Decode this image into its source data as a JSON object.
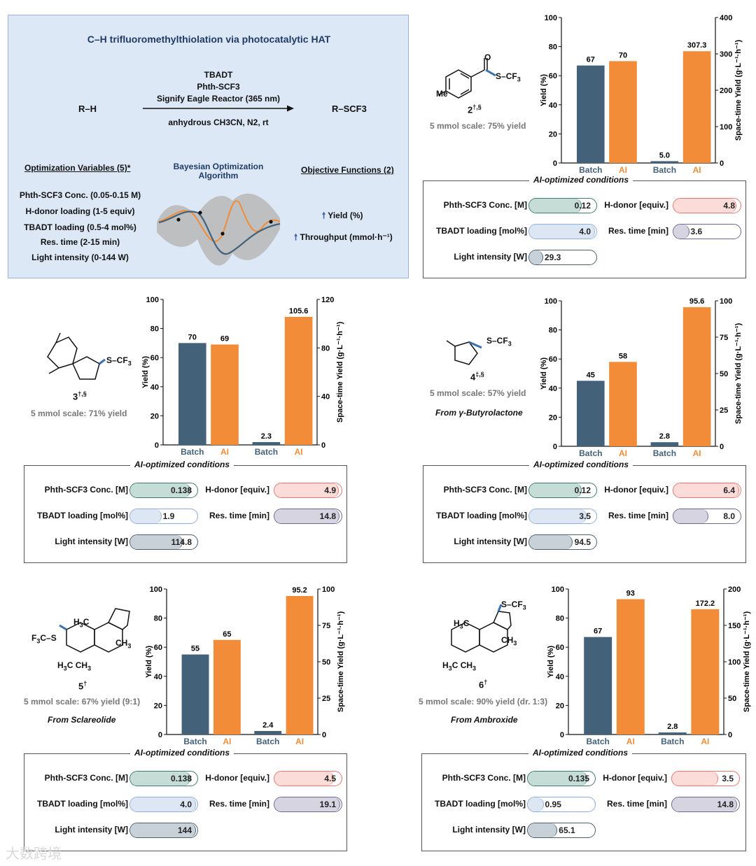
{
  "scheme": {
    "title": "C–H trifluoromethylthiolation via photocatalytic HAT",
    "reactant": "R–H",
    "product": "R–SCF3",
    "reagent1": "TBADT",
    "reagent2": "Phth-SCF3",
    "reactor": "Signify Eagle Reactor (365 nm)",
    "solvent": "anhydrous CH3CN, N2, rt",
    "variables_title": "Optimization Variables (5)*",
    "variables": [
      "Phth-SCF3 Conc. (0.05-0.15 M)",
      "H-donor loading (1-5 equiv)",
      "TBADT loading (0.5-4 mol%)",
      "Res. time (2-15 min)",
      "Light intensity (0-144 W)"
    ],
    "bo_title_1": "Bayesian Optimization",
    "bo_title_2": "Algorithm",
    "objectives_title": "Objective Functions (2)",
    "objectives": [
      "Yield (%)",
      "Throughput (mmol·h⁻¹)"
    ]
  },
  "colors": {
    "batch": "#44617a",
    "ai": "#f28c38",
    "teal": "#3d7a6b",
    "red": "#e8766e",
    "blue": "#8eaedb",
    "purple": "#6d6592",
    "slate": "#4a6070"
  },
  "labels": {
    "conc": "Phth-SCF3 Conc. [M]",
    "hdonor": "H-donor [equiv.]",
    "tbadt": "TBADT loading [mol%]",
    "restime": "Res. time [min]",
    "light": "Light intensity [W]",
    "cond_title": "AI-optimized conditions",
    "batch": "Batch",
    "ai": "AI",
    "y_left": "Yield (%)",
    "y_right": "Space-time Yield (g·L⁻¹·h⁻¹)"
  },
  "chart_data": [
    {
      "type": "bar",
      "compound": "2",
      "mark": "†,§",
      "scale": "5 mmol scale: 75% yield",
      "from": "",
      "categories": [
        "Batch",
        "AI"
      ],
      "yield": [
        67,
        70
      ],
      "sty": [
        5.0,
        307.3
      ],
      "yield_labels": [
        "67",
        "70"
      ],
      "sty_labels": [
        "5.0",
        "307.3"
      ],
      "ylim": [
        0,
        100
      ],
      "ylim_right": [
        0,
        400
      ],
      "right_ticks": [
        0,
        100,
        200,
        300,
        400
      ],
      "conditions": {
        "conc": "0.12",
        "hdonor": "4.8",
        "tbadt": "4.0",
        "restime": "3.6",
        "light": "29.3",
        "fractions": {
          "conc": 0.8,
          "hdonor": 0.96,
          "tbadt": 1.0,
          "restime": 0.24,
          "light": 0.2
        }
      }
    },
    {
      "type": "bar",
      "compound": "3",
      "mark": "†,§",
      "scale": "5 mmol scale: 71% yield",
      "from": "",
      "categories": [
        "Batch",
        "AI"
      ],
      "yield": [
        70,
        69
      ],
      "sty": [
        2.3,
        105.6
      ],
      "yield_labels": [
        "70",
        "69"
      ],
      "sty_labels": [
        "2.3",
        "105.6"
      ],
      "ylim": [
        0,
        100
      ],
      "ylim_right": [
        0,
        120
      ],
      "right_ticks": [
        0,
        40,
        80,
        120
      ],
      "conditions": {
        "conc": "0.138",
        "hdonor": "4.9",
        "tbadt": "1.9",
        "restime": "14.8",
        "light": "114.8",
        "fractions": {
          "conc": 0.92,
          "hdonor": 0.98,
          "tbadt": 0.475,
          "restime": 0.987,
          "light": 0.8
        }
      }
    },
    {
      "type": "bar",
      "compound": "4",
      "mark": "‡,§",
      "scale": "5 mmol scale: 57% yield",
      "from": "From γ-Butyrolactone",
      "categories": [
        "Batch",
        "AI"
      ],
      "yield": [
        45,
        58
      ],
      "sty": [
        2.8,
        95.6
      ],
      "yield_labels": [
        "45",
        "58"
      ],
      "sty_labels": [
        "2.8",
        "95.6"
      ],
      "ylim": [
        0,
        100
      ],
      "ylim_right": [
        0,
        100
      ],
      "right_ticks": [
        0,
        25,
        50,
        75,
        100
      ],
      "conditions": {
        "conc": "0.12",
        "hdonor": "6.4",
        "tbadt": "3.5",
        "restime": "8.0",
        "light": "94.5",
        "fractions": {
          "conc": 0.8,
          "hdonor": 1.0,
          "tbadt": 0.875,
          "restime": 0.53,
          "light": 0.66
        }
      }
    },
    {
      "type": "bar",
      "compound": "5",
      "mark": "†",
      "scale": "5 mmol scale: 67% yield (9:1)",
      "from": "From Sclareolide",
      "categories": [
        "Batch",
        "AI"
      ],
      "yield": [
        55,
        65
      ],
      "sty": [
        2.4,
        95.2
      ],
      "yield_labels": [
        "55",
        "65"
      ],
      "sty_labels": [
        "2.4",
        "95.2"
      ],
      "ylim": [
        0,
        100
      ],
      "ylim_right": [
        0,
        100
      ],
      "right_ticks": [
        0,
        25,
        50,
        75,
        100
      ],
      "conditions": {
        "conc": "0.138",
        "hdonor": "4.5",
        "tbadt": "4.0",
        "restime": "19.1",
        "light": "144",
        "fractions": {
          "conc": 0.92,
          "hdonor": 0.9,
          "tbadt": 1.0,
          "restime": 1.0,
          "light": 1.0
        }
      }
    },
    {
      "type": "bar",
      "compound": "6",
      "mark": "†",
      "scale": "5 mmol scale: 90% yield (dr. 1:3)",
      "from": "From Ambroxide",
      "categories": [
        "Batch",
        "AI"
      ],
      "yield": [
        67,
        93
      ],
      "sty": [
        2.8,
        172.2
      ],
      "yield_labels": [
        "67",
        "93"
      ],
      "sty_labels": [
        "2.8",
        "172.2"
      ],
      "ylim": [
        0,
        100
      ],
      "ylim_right": [
        0,
        200
      ],
      "right_ticks": [
        0,
        50,
        100,
        150,
        200
      ],
      "conditions": {
        "conc": "0.135",
        "hdonor": "3.5",
        "tbadt": "0.95",
        "restime": "14.8",
        "light": "65.1",
        "fractions": {
          "conc": 0.9,
          "hdonor": 0.7,
          "tbadt": 0.24,
          "restime": 0.987,
          "light": 0.45
        }
      }
    }
  ],
  "watermark": "大数跨境"
}
